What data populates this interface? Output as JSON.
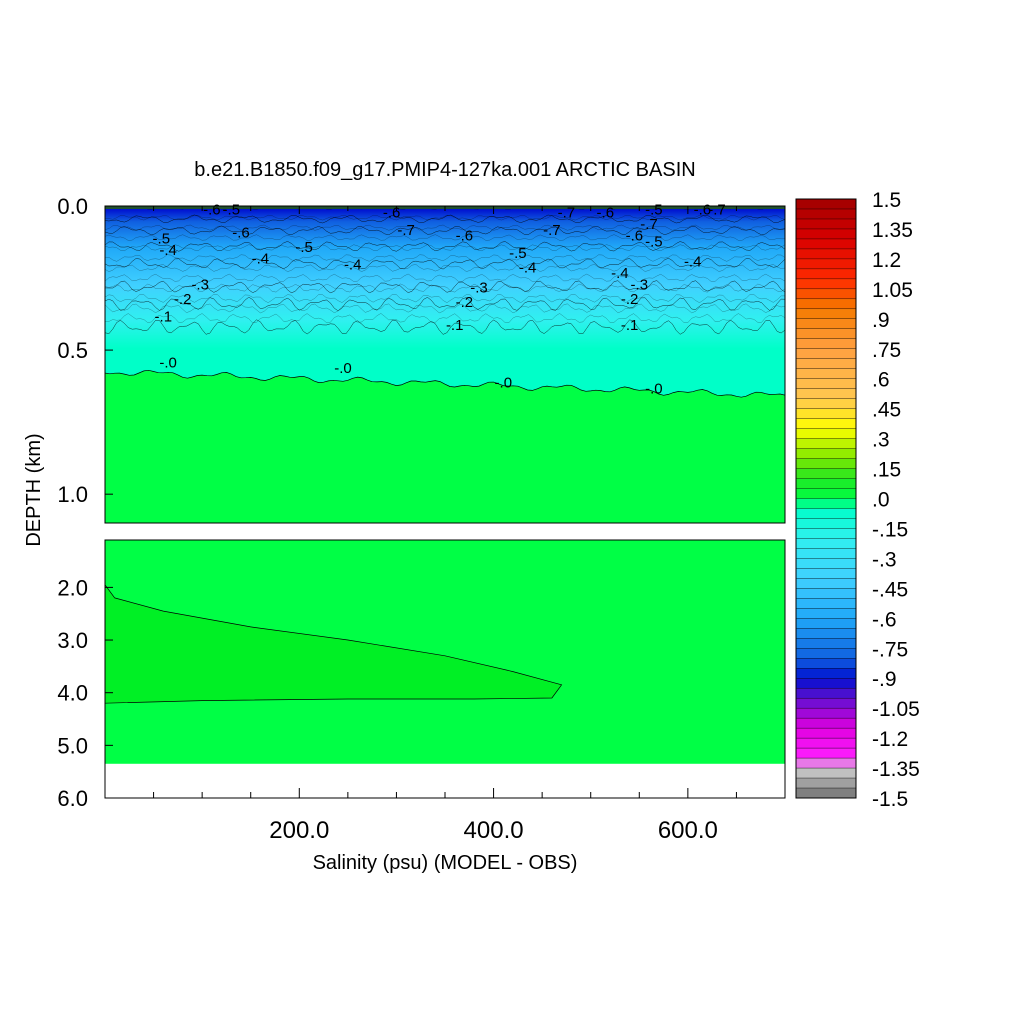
{
  "chart_data": {
    "type": "heatmap",
    "title": "b.e21.B1850.f09_g17.PMIP4-127ka.001 ARCTIC BASIN",
    "xlabel": "Salinity (psu) (MODEL - OBS)",
    "ylabel": "DEPTH (km)",
    "x_ticks": [
      "200.0",
      "400.0",
      "600.0"
    ],
    "x_tick_values": [
      200,
      400,
      600
    ],
    "xlim": [
      0,
      700
    ],
    "upper_panel": {
      "ylim": [
        0.0,
        1.1
      ],
      "y_ticks": [
        "0.0",
        "0.5",
        "1.0"
      ],
      "y_tick_values": [
        0.0,
        0.5,
        1.0
      ]
    },
    "lower_panel": {
      "ylim": [
        1.1,
        6.0
      ],
      "y_ticks": [
        "2.0",
        "3.0",
        "4.0",
        "5.0",
        "6.0"
      ],
      "y_tick_values": [
        2.0,
        3.0,
        4.0,
        5.0,
        6.0
      ],
      "bottom_depth_km": 5.35
    },
    "contour_levels": [
      -0.7,
      -0.6,
      -0.5,
      -0.4,
      -0.3,
      -0.2,
      -0.1,
      0.0
    ],
    "contour_labels": [
      {
        "text": "-.1",
        "x": 60,
        "depth": 0.4
      },
      {
        "text": "-.2",
        "x": 80,
        "depth": 0.34
      },
      {
        "text": "-.3",
        "x": 98,
        "depth": 0.29
      },
      {
        "text": "-.4",
        "x": 65,
        "depth": 0.17
      },
      {
        "text": "-.5",
        "x": 58,
        "depth": 0.13
      },
      {
        "text": "-.6",
        "x": 110,
        "depth": 0.03
      },
      {
        "text": "-.5",
        "x": 130,
        "depth": 0.03
      },
      {
        "text": "-.6",
        "x": 140,
        "depth": 0.11
      },
      {
        "text": "-.4",
        "x": 160,
        "depth": 0.2
      },
      {
        "text": "-.5",
        "x": 205,
        "depth": 0.16
      },
      {
        "text": "-.4",
        "x": 255,
        "depth": 0.22
      },
      {
        "text": "-.0",
        "x": 65,
        "depth": 0.56
      },
      {
        "text": "-.0",
        "x": 245,
        "depth": 0.58
      },
      {
        "text": "-.0",
        "x": 410,
        "depth": 0.63
      },
      {
        "text": "-.0",
        "x": 565,
        "depth": 0.65
      },
      {
        "text": "-.6",
        "x": 370,
        "depth": 0.12
      },
      {
        "text": "-.5",
        "x": 425,
        "depth": 0.18
      },
      {
        "text": "-.4",
        "x": 435,
        "depth": 0.23
      },
      {
        "text": "-.3",
        "x": 385,
        "depth": 0.3
      },
      {
        "text": "-.2",
        "x": 370,
        "depth": 0.35
      },
      {
        "text": "-.1",
        "x": 360,
        "depth": 0.43
      },
      {
        "text": "-.7",
        "x": 310,
        "depth": 0.1
      },
      {
        "text": "-.6",
        "x": 295,
        "depth": 0.04
      },
      {
        "text": "-.7",
        "x": 460,
        "depth": 0.1
      },
      {
        "text": "-.7",
        "x": 475,
        "depth": 0.04
      },
      {
        "text": "-.6",
        "x": 515,
        "depth": 0.04
      },
      {
        "text": "-.5",
        "x": 565,
        "depth": 0.03
      },
      {
        "text": "-.7",
        "x": 560,
        "depth": 0.08
      },
      {
        "text": "-.6",
        "x": 545,
        "depth": 0.12
      },
      {
        "text": "-.5",
        "x": 565,
        "depth": 0.14
      },
      {
        "text": "-.4",
        "x": 530,
        "depth": 0.25
      },
      {
        "text": "-.4",
        "x": 605,
        "depth": 0.21
      },
      {
        "text": "-.3",
        "x": 550,
        "depth": 0.29
      },
      {
        "text": "-.2",
        "x": 540,
        "depth": 0.34
      },
      {
        "text": "-.1",
        "x": 540,
        "depth": 0.43
      },
      {
        "text": "-.6",
        "x": 615,
        "depth": 0.03
      },
      {
        "text": "-.7",
        "x": 630,
        "depth": 0.03
      }
    ],
    "colorbar": {
      "labels": [
        "1.5",
        "1.35",
        "1.2",
        "1.05",
        ".9",
        ".75",
        ".6",
        ".45",
        ".3",
        ".15",
        ".0",
        "-.15",
        "-.3",
        "-.45",
        "-.6",
        "-.75",
        "-.9",
        "-1.05",
        "-1.2",
        "-1.35",
        "-1.5"
      ],
      "min": -1.5,
      "max": 1.5,
      "step": 0.05,
      "stops": [
        {
          "v": 1.5,
          "c": "#a00000"
        },
        {
          "v": 1.3,
          "c": "#d80000"
        },
        {
          "v": 1.1,
          "c": "#ff2a00"
        },
        {
          "v": 0.95,
          "c": "#f57a00"
        },
        {
          "v": 0.75,
          "c": "#ffa040"
        },
        {
          "v": 0.5,
          "c": "#ffc850"
        },
        {
          "v": 0.35,
          "c": "#ffff00"
        },
        {
          "v": 0.2,
          "c": "#7ee800"
        },
        {
          "v": 0.1,
          "c": "#22e822"
        },
        {
          "v": 0.0,
          "c": "#00ff45"
        },
        {
          "v": -0.05,
          "c": "#00ffc8"
        },
        {
          "v": -0.2,
          "c": "#30f0f0"
        },
        {
          "v": -0.4,
          "c": "#40d0ff"
        },
        {
          "v": -0.6,
          "c": "#20a8f8"
        },
        {
          "v": -0.8,
          "c": "#1060e0"
        },
        {
          "v": -0.9,
          "c": "#0010d0"
        },
        {
          "v": -1.0,
          "c": "#6010d0"
        },
        {
          "v": -1.15,
          "c": "#e000e0"
        },
        {
          "v": -1.3,
          "c": "#ff20ff"
        },
        {
          "v": -1.35,
          "c": "#d0d0d0"
        },
        {
          "v": -1.5,
          "c": "#707070"
        }
      ]
    },
    "fields": {
      "deep_green": "#00ff45",
      "deep_wedge": "#00f025",
      "surface": "#0010d0",
      "mid_blue": "#20a8f8",
      "cyan": "#00ffc8",
      "no_data": "#ffffff"
    },
    "deep_wedge": {
      "x": [
        0,
        10,
        60,
        150,
        250,
        350,
        420,
        470,
        460,
        380,
        250,
        100,
        0
      ],
      "depth": [
        1.95,
        2.2,
        2.45,
        2.75,
        3.0,
        3.3,
        3.6,
        3.85,
        4.1,
        4.12,
        4.12,
        4.15,
        4.2
      ]
    }
  }
}
